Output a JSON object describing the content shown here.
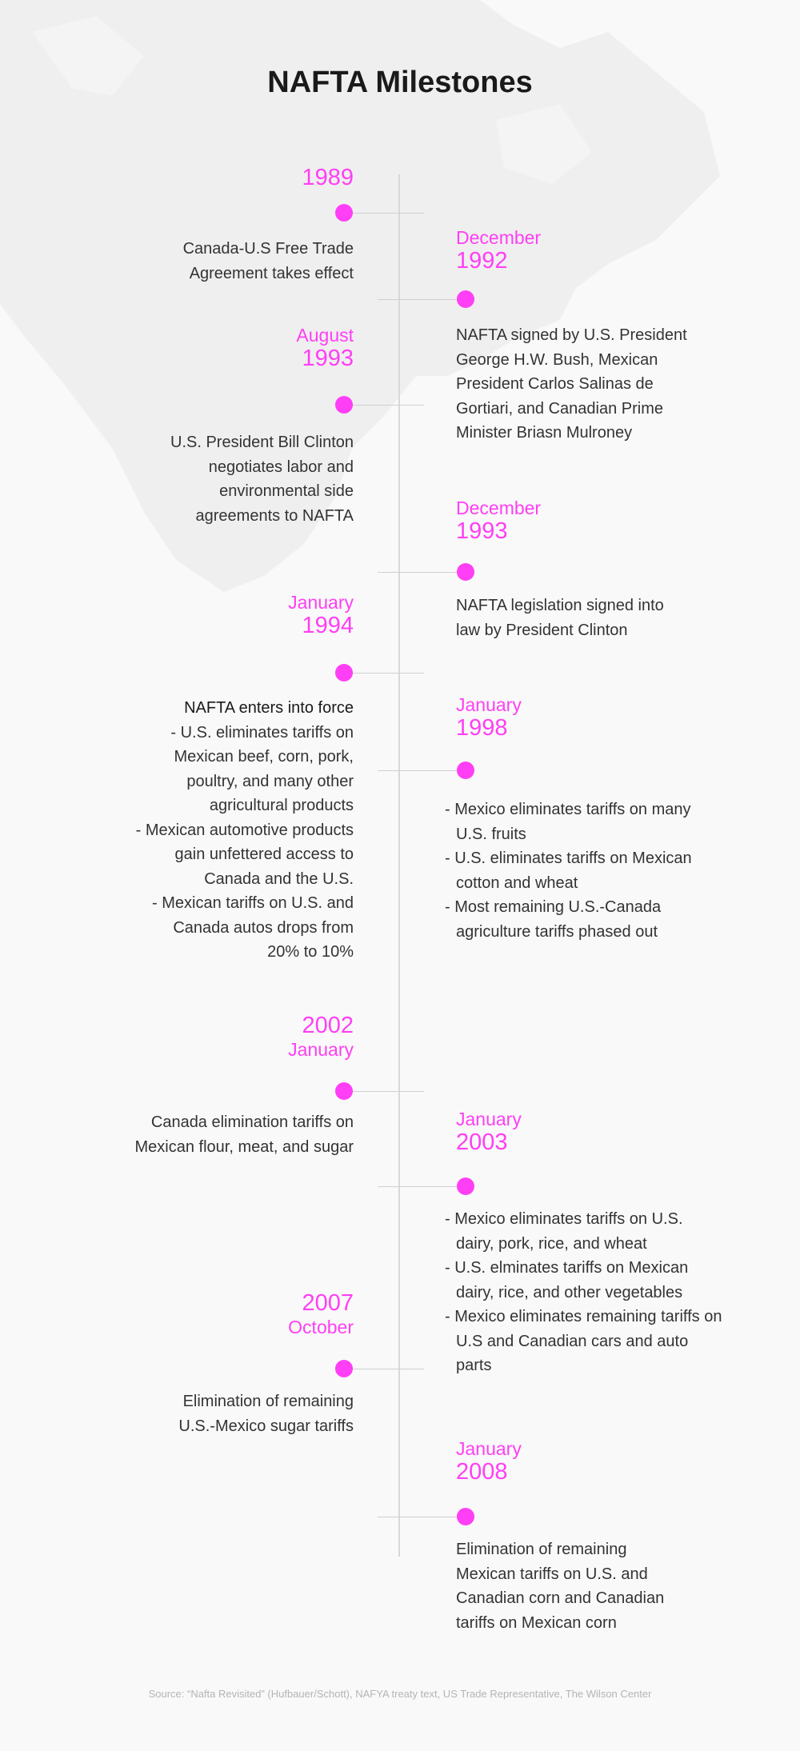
{
  "title": "NAFTA Milestones",
  "accent_color": "#ff3ff5",
  "milestones": [
    {
      "side": "left",
      "month": "",
      "year": "1989",
      "order": "year",
      "text": [
        "Canada-U.S Free Trade",
        "Agreement takes effect"
      ]
    },
    {
      "side": "right",
      "month": "December",
      "year": "1992",
      "order": "month",
      "text": [
        "NAFTA signed by U.S. President",
        "George H.W. Bush, Mexican",
        "President Carlos Salinas de",
        "Gortiari, and Canadian Prime",
        "Minister Briasn Mulroney"
      ]
    },
    {
      "side": "left",
      "month": "August",
      "year": "1993",
      "order": "month",
      "text": [
        "U.S. President Bill Clinton",
        "negotiates labor and",
        "environmental side",
        "agreements to NAFTA"
      ]
    },
    {
      "side": "right",
      "month": "December",
      "year": "1993",
      "order": "month",
      "text": [
        "NAFTA legislation signed into",
        "law by President Clinton"
      ]
    },
    {
      "side": "left",
      "month": "January",
      "year": "1994",
      "order": "month",
      "heading": "NAFTA enters into force",
      "text": [
        "- U.S. eliminates tariffs on",
        "Mexican beef, corn, pork,",
        "poultry, and many other",
        "agricultural products",
        "- Mexican automotive products",
        "gain unfettered access to",
        "Canada and the U.S.",
        "- Mexican tariffs on U.S. and",
        "Canada autos drops from",
        "20% to 10%"
      ]
    },
    {
      "side": "right",
      "month": "January",
      "year": "1998",
      "order": "month",
      "bullets": [
        "- Mexico eliminates tariffs on many U.S. fruits",
        "- U.S. eliminates tariffs on Mexican cotton and wheat",
        "- Most remaining U.S.-Canada agriculture tariffs phased out"
      ]
    },
    {
      "side": "left",
      "month": "January",
      "year": "2002",
      "order": "year",
      "text": [
        "Canada elimination tariffs on",
        "Mexican flour, meat, and sugar"
      ]
    },
    {
      "side": "right",
      "month": "January",
      "year": "2003",
      "order": "month",
      "bullets": [
        "- Mexico eliminates tariffs on U.S. dairy, pork, rice, and wheat",
        "- U.S. elminates tariffs on Mexican dairy, rice, and other vegetables",
        "- Mexico eliminates remaining tariffs on U.S and Canadian cars and auto parts"
      ]
    },
    {
      "side": "left",
      "month": "October",
      "year": "2007",
      "order": "year",
      "text": [
        "Elimination of remaining",
        "U.S.-Mexico sugar tariffs"
      ]
    },
    {
      "side": "right",
      "month": "January",
      "year": "2008",
      "order": "month",
      "text": [
        "Elimination of remaining",
        "Mexican tariffs on U.S. and",
        "Canadian corn and Canadian",
        "tariffs on Mexican corn"
      ]
    }
  ],
  "source": "Source: “Nafta Revisited” (Hufbauer/Schott), NAFYA treaty text, US Trade Representative, The Wilson Center"
}
